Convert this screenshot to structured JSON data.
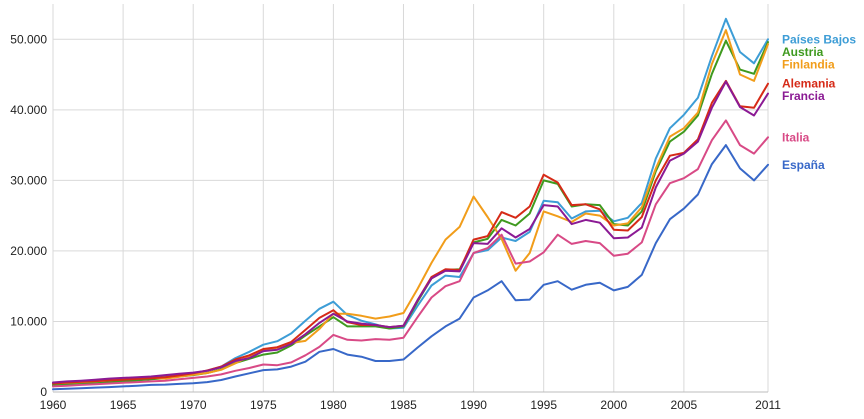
{
  "chart_data": {
    "type": "line",
    "title": "",
    "xlabel": "",
    "ylabel": "",
    "xlim": [
      1960,
      2011
    ],
    "ylim": [
      0,
      55000
    ],
    "grid": true,
    "legend_position": "right",
    "x_ticks": [
      1960,
      1965,
      1970,
      1975,
      1980,
      1985,
      1990,
      1995,
      2000,
      2005,
      2011
    ],
    "x_tick_labels": [
      "1960",
      "1965",
      "1970",
      "1975",
      "1980",
      "1985",
      "1990",
      "1995",
      "2000",
      "2005",
      "2011"
    ],
    "y_ticks": [
      0,
      10000,
      20000,
      30000,
      40000,
      50000
    ],
    "y_tick_labels": [
      "0",
      "10.000",
      "20.000",
      "30.000",
      "40.000",
      "50.000"
    ],
    "x": [
      1960,
      1961,
      1962,
      1963,
      1964,
      1965,
      1966,
      1967,
      1968,
      1969,
      1970,
      1971,
      1972,
      1973,
      1974,
      1975,
      1976,
      1977,
      1978,
      1979,
      1980,
      1981,
      1982,
      1983,
      1984,
      1985,
      1986,
      1987,
      1988,
      1989,
      1990,
      1991,
      1992,
      1993,
      1994,
      1995,
      1996,
      1997,
      1998,
      1999,
      2000,
      2001,
      2002,
      2003,
      2004,
      2005,
      2006,
      2007,
      2008,
      2009,
      2010,
      2011
    ],
    "series": [
      {
        "name": "Países Bajos",
        "color": "#3d9dd6",
        "values": [
          1100,
          1200,
          1300,
          1400,
          1550,
          1700,
          1850,
          2000,
          2200,
          2450,
          2700,
          3000,
          3600,
          4800,
          5700,
          6700,
          7200,
          8300,
          10100,
          11800,
          12800,
          10900,
          10100,
          9600,
          9000,
          9100,
          12200,
          15100,
          16500,
          16300,
          19700,
          20100,
          21900,
          21400,
          22700,
          27100,
          26900,
          24600,
          25600,
          25700,
          24200,
          24700,
          26800,
          33100,
          37400,
          39300,
          41700,
          47600,
          52900,
          48200,
          46600,
          50000
        ]
      },
      {
        "name": "Austria",
        "color": "#3f9a1f",
        "values": [
          950,
          1050,
          1150,
          1250,
          1380,
          1500,
          1650,
          1800,
          1950,
          2200,
          2400,
          2700,
          3200,
          4100,
          4700,
          5300,
          5600,
          6600,
          8000,
          9300,
          10600,
          9300,
          9300,
          9300,
          9000,
          9300,
          12800,
          16100,
          17300,
          17400,
          21200,
          21700,
          24400,
          23600,
          25300,
          30000,
          29500,
          26300,
          26600,
          26500,
          23800,
          23600,
          25600,
          31300,
          35500,
          36900,
          39200,
          45100,
          49800,
          45700,
          45100,
          49600
        ]
      },
      {
        "name": "Finlandia",
        "color": "#f19d1a",
        "values": [
          1200,
          1300,
          1400,
          1500,
          1650,
          1800,
          1900,
          2000,
          1900,
          2150,
          2450,
          2700,
          3150,
          4050,
          5050,
          5900,
          6300,
          6950,
          7250,
          8950,
          11100,
          11100,
          10800,
          10400,
          10700,
          11200,
          14600,
          18300,
          21600,
          23400,
          27700,
          24800,
          21700,
          17200,
          19700,
          25600,
          24900,
          24100,
          25300,
          25000,
          23600,
          23900,
          26200,
          31700,
          36200,
          37400,
          39600,
          46500,
          51300,
          45000,
          44100,
          49300
        ]
      },
      {
        "name": "Alemania",
        "color": "#d62a17",
        "values": [
          1200,
          1350,
          1450,
          1550,
          1650,
          1750,
          1850,
          1950,
          2100,
          2350,
          2650,
          3050,
          3600,
          4600,
          5200,
          6100,
          6350,
          7100,
          8800,
          10500,
          11600,
          9900,
          9500,
          9500,
          9200,
          9400,
          13000,
          16300,
          17400,
          17300,
          21600,
          22100,
          25500,
          24700,
          26300,
          30800,
          29700,
          26500,
          26600,
          25900,
          23000,
          22900,
          24800,
          30000,
          33500,
          33900,
          35800,
          41000,
          44100,
          40500,
          40300,
          43700
        ]
      },
      {
        "name": "Francia",
        "color": "#8b1a94",
        "values": [
          1350,
          1500,
          1600,
          1750,
          1900,
          2000,
          2100,
          2200,
          2400,
          2600,
          2750,
          3000,
          3500,
          4400,
          4800,
          5800,
          6000,
          6800,
          8200,
          9800,
          11100,
          10000,
          9700,
          9500,
          9200,
          9400,
          13000,
          16100,
          17200,
          17100,
          21100,
          21000,
          23200,
          21900,
          23100,
          26500,
          26300,
          23800,
          24400,
          24000,
          21800,
          21900,
          23300,
          29000,
          32800,
          33800,
          35500,
          40300,
          44000,
          40400,
          39200,
          42300
        ]
      },
      {
        "name": "Italia",
        "color": "#d84a86",
        "values": [
          800,
          900,
          1000,
          1100,
          1200,
          1300,
          1400,
          1500,
          1600,
          1800,
          2000,
          2200,
          2500,
          3000,
          3400,
          3900,
          3800,
          4200,
          5200,
          6400,
          8100,
          7400,
          7300,
          7500,
          7400,
          7700,
          10600,
          13400,
          15000,
          15700,
          19700,
          20400,
          22300,
          18200,
          18500,
          19800,
          22300,
          21000,
          21400,
          21100,
          19300,
          19600,
          21200,
          26600,
          29600,
          30300,
          31600,
          35700,
          38500,
          35000,
          33800,
          36100
        ]
      },
      {
        "name": "España",
        "color": "#3868c8",
        "values": [
          400,
          460,
          530,
          620,
          700,
          800,
          900,
          1000,
          1050,
          1150,
          1250,
          1400,
          1700,
          2200,
          2650,
          3100,
          3200,
          3600,
          4300,
          5700,
          6100,
          5300,
          5000,
          4400,
          4400,
          4600,
          6300,
          7900,
          9300,
          10400,
          13400,
          14400,
          15700,
          13000,
          13100,
          15200,
          15700,
          14500,
          15200,
          15500,
          14400,
          14900,
          16600,
          21100,
          24500,
          26000,
          28000,
          32300,
          35000,
          31700,
          30000,
          32200
        ]
      }
    ]
  }
}
